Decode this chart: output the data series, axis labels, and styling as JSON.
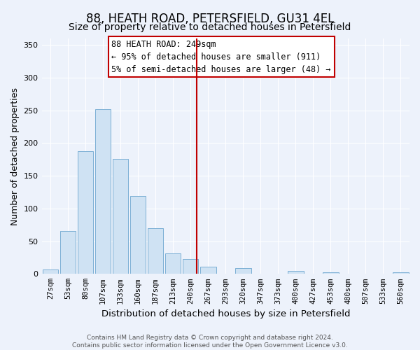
{
  "title": "88, HEATH ROAD, PETERSFIELD, GU31 4EL",
  "subtitle": "Size of property relative to detached houses in Petersfield",
  "xlabel": "Distribution of detached houses by size in Petersfield",
  "ylabel": "Number of detached properties",
  "bar_labels": [
    "27sqm",
    "53sqm",
    "80sqm",
    "107sqm",
    "133sqm",
    "160sqm",
    "187sqm",
    "213sqm",
    "240sqm",
    "267sqm",
    "293sqm",
    "320sqm",
    "347sqm",
    "373sqm",
    "400sqm",
    "427sqm",
    "453sqm",
    "480sqm",
    "507sqm",
    "533sqm",
    "560sqm"
  ],
  "bar_values": [
    7,
    66,
    188,
    252,
    176,
    119,
    70,
    31,
    23,
    11,
    0,
    9,
    0,
    0,
    5,
    0,
    3,
    0,
    0,
    0,
    2
  ],
  "bar_color": "#cfe2f3",
  "bar_edge_color": "#7bafd4",
  "vline_color": "#c00000",
  "annotation_title": "88 HEATH ROAD: 249sqm",
  "annotation_line1": "← 95% of detached houses are smaller (911)",
  "annotation_line2": "5% of semi-detached houses are larger (48) →",
  "ylim": [
    0,
    360
  ],
  "yticks": [
    0,
    50,
    100,
    150,
    200,
    250,
    300,
    350
  ],
  "footer_line1": "Contains HM Land Registry data © Crown copyright and database right 2024.",
  "footer_line2": "Contains public sector information licensed under the Open Government Licence v3.0.",
  "bg_color": "#edf2fb",
  "grid_color": "#ffffff",
  "title_fontsize": 12,
  "subtitle_fontsize": 10,
  "ylabel_fontsize": 9,
  "xlabel_fontsize": 9.5,
  "tick_fontsize": 7.5,
  "footer_fontsize": 6.5,
  "annot_fontsize": 8.5
}
